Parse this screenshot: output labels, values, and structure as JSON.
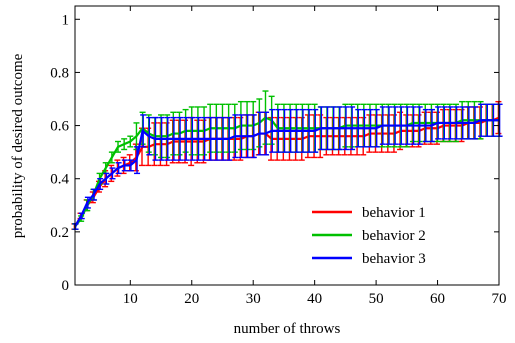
{
  "chart_data": {
    "type": "line",
    "xlabel": "number of throws",
    "ylabel": "probability of desired outcome",
    "xlim": [
      1,
      70
    ],
    "ylim": [
      0,
      1.05
    ],
    "xticks": [
      10,
      20,
      30,
      40,
      50,
      60,
      70
    ],
    "yticks": [
      0,
      0.2,
      0.4,
      0.6,
      0.8,
      1
    ],
    "ytick_labels": [
      "0",
      "0.2",
      "0.4",
      "0.6",
      "0.8",
      "1"
    ],
    "grid": false,
    "legend_position": "bottom-right",
    "x": [
      1,
      2,
      3,
      4,
      5,
      6,
      7,
      8,
      9,
      10,
      11,
      12,
      13,
      14,
      15,
      16,
      17,
      18,
      19,
      20,
      21,
      22,
      23,
      24,
      25,
      26,
      27,
      28,
      29,
      30,
      31,
      32,
      33,
      34,
      35,
      36,
      37,
      38,
      39,
      40,
      41,
      42,
      43,
      44,
      45,
      46,
      47,
      48,
      49,
      50,
      51,
      52,
      53,
      54,
      55,
      56,
      57,
      58,
      59,
      60,
      61,
      62,
      63,
      64,
      65,
      66,
      67,
      68,
      69,
      70
    ],
    "series": [
      {
        "name": "behavior 1",
        "color": "#ff0000",
        "values": [
          0.22,
          0.26,
          0.3,
          0.33,
          0.37,
          0.4,
          0.42,
          0.44,
          0.45,
          0.46,
          0.48,
          0.52,
          0.52,
          0.53,
          0.53,
          0.53,
          0.54,
          0.54,
          0.54,
          0.54,
          0.54,
          0.54,
          0.55,
          0.55,
          0.55,
          0.55,
          0.55,
          0.55,
          0.56,
          0.56,
          0.57,
          0.57,
          0.55,
          0.55,
          0.55,
          0.55,
          0.55,
          0.55,
          0.56,
          0.56,
          0.56,
          0.56,
          0.56,
          0.56,
          0.56,
          0.56,
          0.56,
          0.56,
          0.57,
          0.57,
          0.57,
          0.57,
          0.57,
          0.58,
          0.58,
          0.58,
          0.58,
          0.59,
          0.59,
          0.59,
          0.6,
          0.6,
          0.6,
          0.6,
          0.61,
          0.61,
          0.61,
          0.62,
          0.62,
          0.63
        ],
        "error": [
          0.01,
          0.01,
          0.02,
          0.02,
          0.02,
          0.03,
          0.03,
          0.03,
          0.03,
          0.03,
          0.05,
          0.07,
          0.07,
          0.08,
          0.08,
          0.08,
          0.08,
          0.08,
          0.08,
          0.09,
          0.08,
          0.08,
          0.08,
          0.08,
          0.08,
          0.08,
          0.08,
          0.08,
          0.08,
          0.08,
          0.08,
          0.08,
          0.08,
          0.08,
          0.08,
          0.08,
          0.08,
          0.08,
          0.08,
          0.08,
          0.08,
          0.07,
          0.07,
          0.07,
          0.07,
          0.07,
          0.07,
          0.07,
          0.07,
          0.07,
          0.07,
          0.07,
          0.07,
          0.07,
          0.06,
          0.06,
          0.06,
          0.06,
          0.06,
          0.06,
          0.06,
          0.06,
          0.06,
          0.06,
          0.06,
          0.06,
          0.06,
          0.06,
          0.06,
          0.06
        ]
      },
      {
        "name": "behavior 2",
        "color": "#00c000",
        "values": [
          0.22,
          0.25,
          0.3,
          0.34,
          0.4,
          0.44,
          0.48,
          0.52,
          0.53,
          0.54,
          0.56,
          0.59,
          0.57,
          0.56,
          0.56,
          0.56,
          0.57,
          0.57,
          0.58,
          0.58,
          0.58,
          0.58,
          0.59,
          0.59,
          0.59,
          0.59,
          0.59,
          0.6,
          0.6,
          0.6,
          0.61,
          0.63,
          0.62,
          0.59,
          0.59,
          0.59,
          0.59,
          0.59,
          0.59,
          0.59,
          0.59,
          0.59,
          0.59,
          0.59,
          0.6,
          0.6,
          0.6,
          0.6,
          0.6,
          0.6,
          0.6,
          0.6,
          0.6,
          0.6,
          0.6,
          0.61,
          0.61,
          0.61,
          0.61,
          0.61,
          0.61,
          0.61,
          0.61,
          0.62,
          0.62,
          0.62,
          0.62,
          0.62,
          0.62,
          0.62
        ],
        "error": [
          0.01,
          0.01,
          0.02,
          0.02,
          0.02,
          0.02,
          0.02,
          0.02,
          0.02,
          0.02,
          0.05,
          0.06,
          0.07,
          0.07,
          0.08,
          0.08,
          0.08,
          0.08,
          0.08,
          0.09,
          0.09,
          0.09,
          0.09,
          0.09,
          0.09,
          0.09,
          0.09,
          0.09,
          0.09,
          0.09,
          0.09,
          0.1,
          0.09,
          0.09,
          0.09,
          0.09,
          0.09,
          0.09,
          0.09,
          0.09,
          0.08,
          0.08,
          0.08,
          0.08,
          0.08,
          0.08,
          0.08,
          0.08,
          0.08,
          0.08,
          0.08,
          0.08,
          0.08,
          0.08,
          0.08,
          0.07,
          0.07,
          0.07,
          0.07,
          0.07,
          0.07,
          0.07,
          0.07,
          0.07,
          0.07,
          0.07,
          0.07,
          0.06,
          0.06,
          0.06
        ]
      },
      {
        "name": "behavior 3",
        "color": "#0000ff",
        "values": [
          0.22,
          0.26,
          0.31,
          0.34,
          0.38,
          0.4,
          0.42,
          0.44,
          0.45,
          0.45,
          0.47,
          0.58,
          0.56,
          0.55,
          0.55,
          0.55,
          0.55,
          0.55,
          0.55,
          0.55,
          0.55,
          0.55,
          0.55,
          0.55,
          0.55,
          0.55,
          0.56,
          0.56,
          0.56,
          0.56,
          0.57,
          0.57,
          0.58,
          0.58,
          0.58,
          0.58,
          0.58,
          0.58,
          0.58,
          0.58,
          0.59,
          0.59,
          0.59,
          0.59,
          0.59,
          0.59,
          0.59,
          0.59,
          0.59,
          0.59,
          0.6,
          0.6,
          0.6,
          0.6,
          0.6,
          0.6,
          0.6,
          0.6,
          0.6,
          0.61,
          0.61,
          0.61,
          0.61,
          0.61,
          0.61,
          0.61,
          0.62,
          0.62,
          0.62,
          0.62
        ],
        "error": [
          0.01,
          0.01,
          0.02,
          0.02,
          0.02,
          0.02,
          0.02,
          0.02,
          0.02,
          0.02,
          0.05,
          0.06,
          0.07,
          0.08,
          0.08,
          0.08,
          0.08,
          0.08,
          0.08,
          0.08,
          0.08,
          0.08,
          0.08,
          0.08,
          0.08,
          0.08,
          0.08,
          0.08,
          0.08,
          0.08,
          0.08,
          0.08,
          0.08,
          0.08,
          0.08,
          0.08,
          0.08,
          0.08,
          0.08,
          0.08,
          0.08,
          0.08,
          0.08,
          0.08,
          0.08,
          0.08,
          0.07,
          0.07,
          0.07,
          0.07,
          0.07,
          0.07,
          0.07,
          0.07,
          0.07,
          0.07,
          0.07,
          0.06,
          0.06,
          0.06,
          0.06,
          0.06,
          0.06,
          0.06,
          0.06,
          0.06,
          0.06,
          0.06,
          0.06,
          0.06
        ]
      }
    ]
  }
}
